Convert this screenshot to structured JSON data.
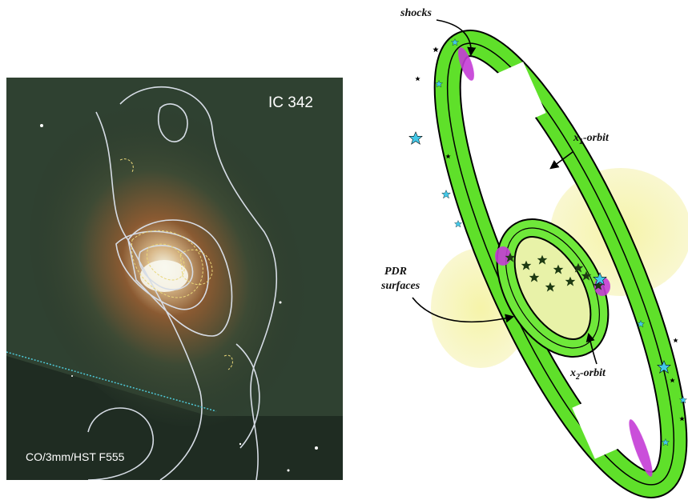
{
  "left_panel": {
    "object_label": "IC 342",
    "data_label": "CO/3mm/HST F555"
  },
  "right_panel": {
    "shocks": "shocks",
    "x1_orbit": {
      "base": "x",
      "subscript": "1",
      "rest": "-orbit"
    },
    "x2_orbit": {
      "base": "x",
      "subscript": "2",
      "rest": "-orbit"
    },
    "pdr_surfaces": [
      "PDR",
      "surfaces"
    ]
  }
}
